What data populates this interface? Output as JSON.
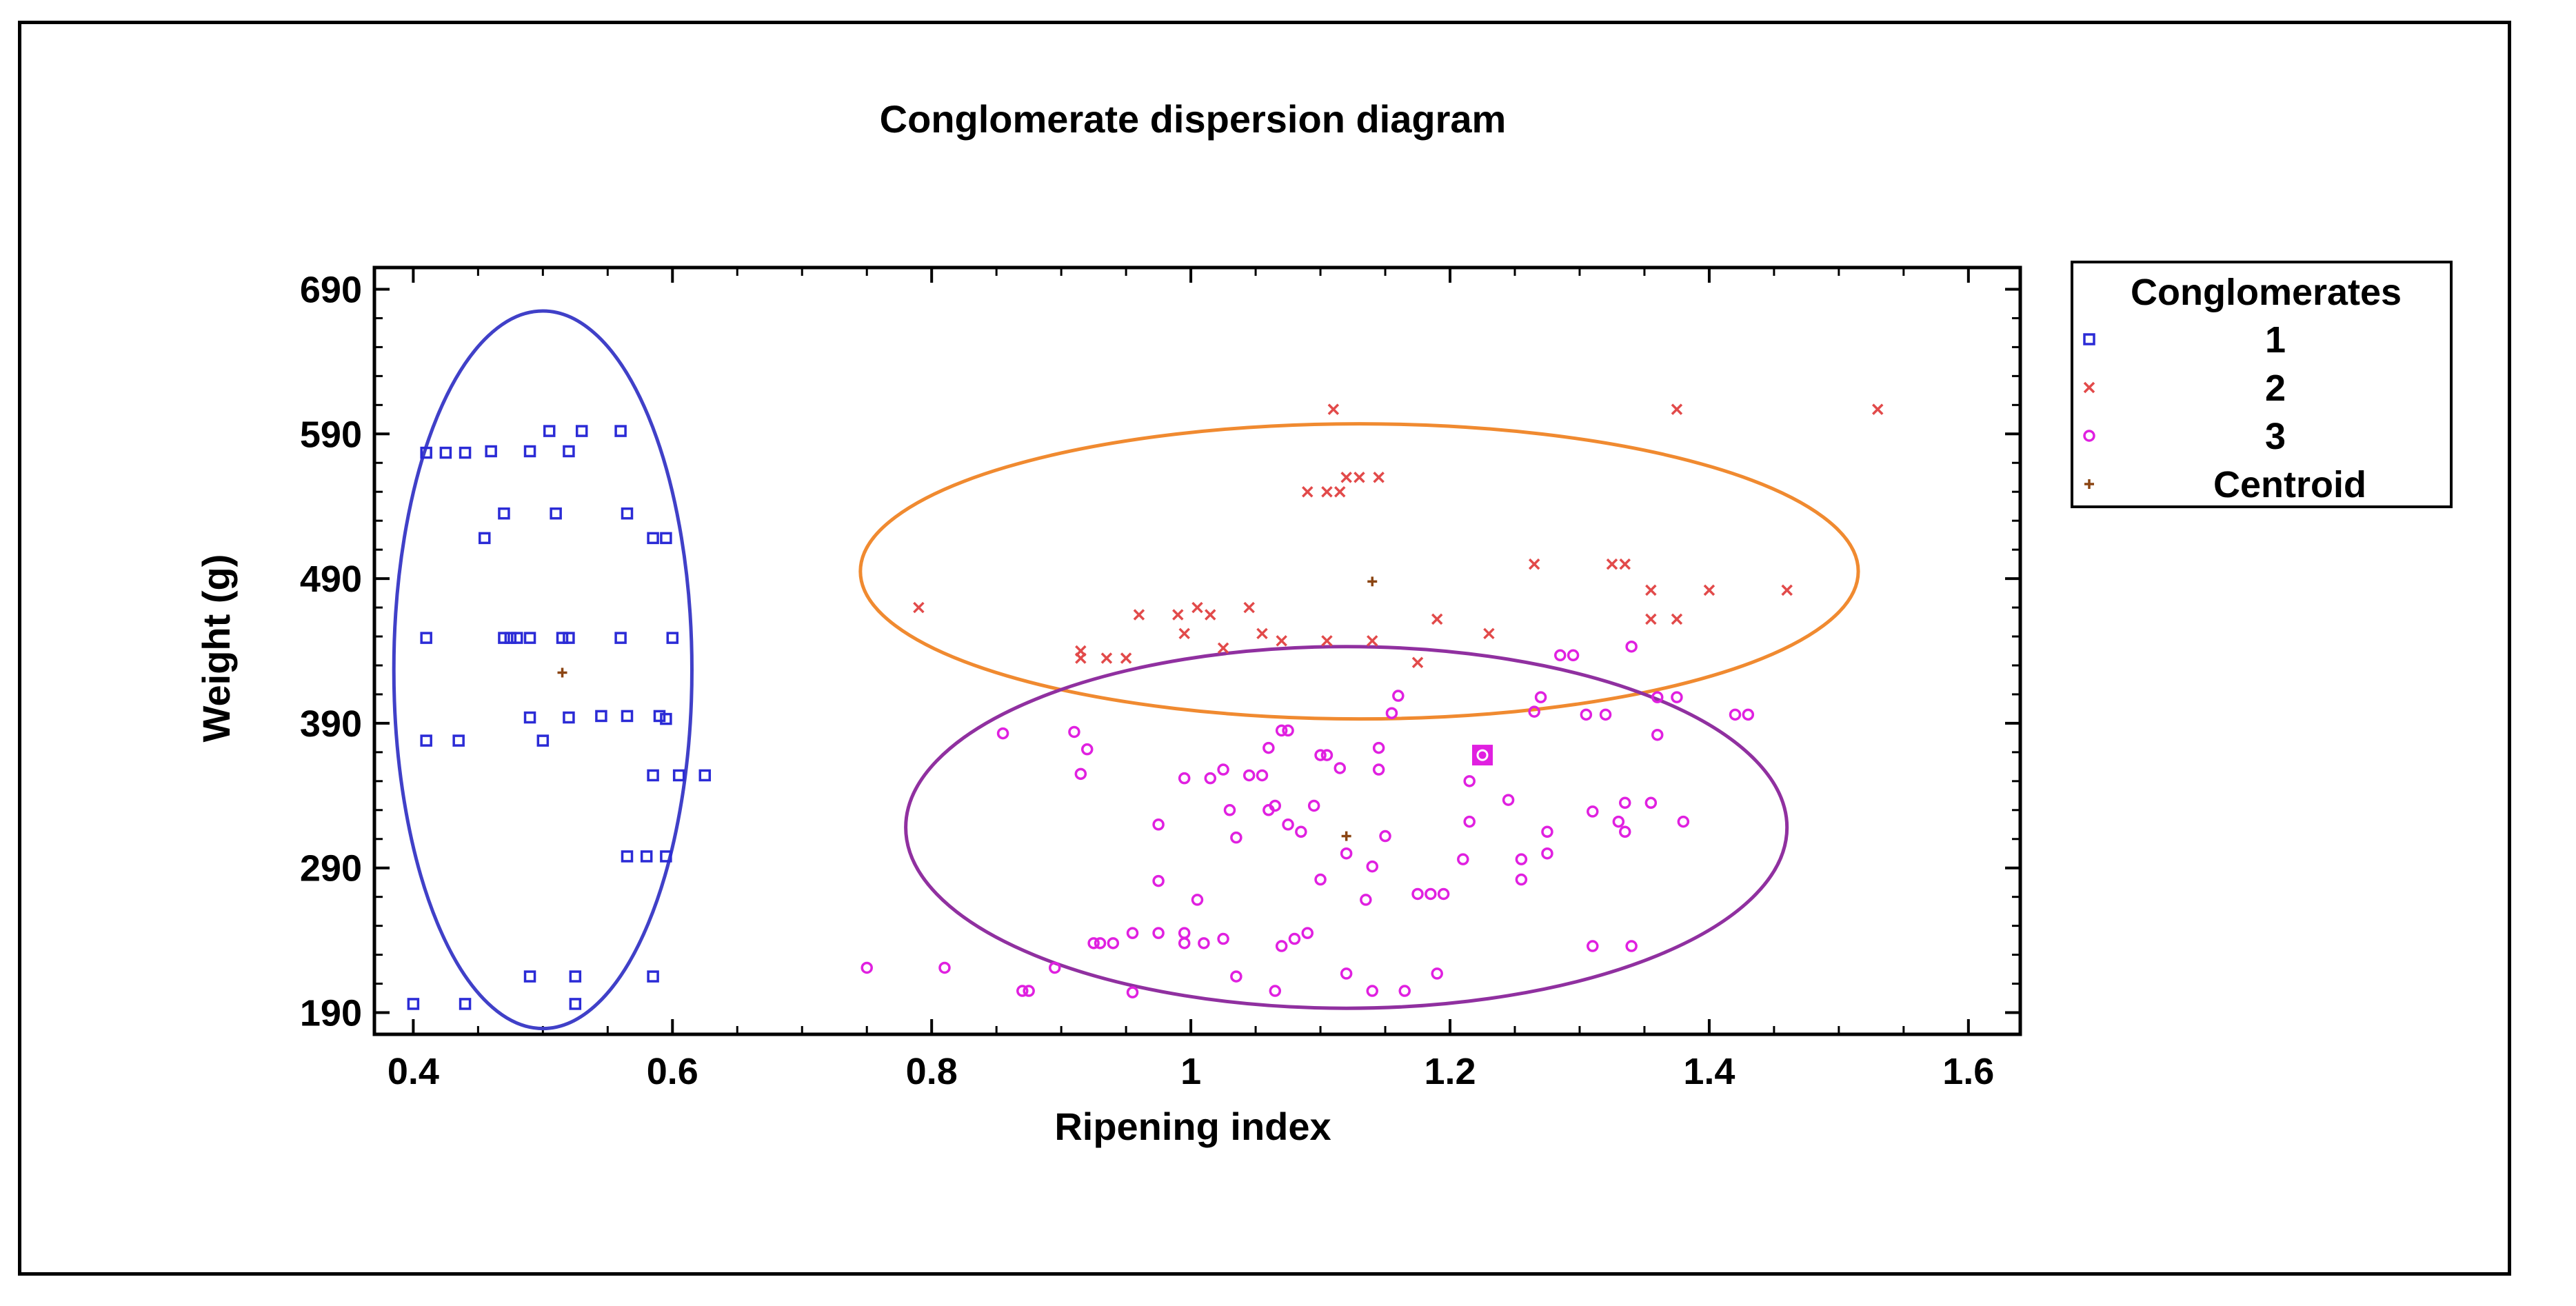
{
  "chart_data": {
    "type": "scatter",
    "title": "Conglomerate dispersion diagram",
    "xlabel": "Ripening index",
    "ylabel": "Weight (g)",
    "xlim": [
      0.37,
      1.64
    ],
    "ylim": [
      175,
      705
    ],
    "x_ticks": [
      0.4,
      0.6,
      0.8,
      1,
      1.2,
      1.4,
      1.6
    ],
    "x_tick_labels": [
      "0.4",
      "0.6",
      "0.8",
      "1",
      "1.2",
      "1.4",
      "1.6"
    ],
    "y_ticks": [
      190,
      290,
      390,
      490,
      590,
      690
    ],
    "y_tick_labels": [
      "190",
      "290",
      "390",
      "490",
      "590",
      "690"
    ],
    "grid": false,
    "legend": {
      "title": "Conglomerates",
      "placement": "right",
      "entries": [
        "1",
        "2",
        "3",
        "Centroid"
      ]
    },
    "series": [
      {
        "name": "1",
        "marker": "square",
        "color": "#2b2bd6",
        "points": [
          [
            0.41,
            577
          ],
          [
            0.425,
            577
          ],
          [
            0.44,
            577
          ],
          [
            0.46,
            578
          ],
          [
            0.49,
            578
          ],
          [
            0.52,
            578
          ],
          [
            0.505,
            592
          ],
          [
            0.53,
            592
          ],
          [
            0.56,
            592
          ],
          [
            0.455,
            518
          ],
          [
            0.47,
            535
          ],
          [
            0.51,
            535
          ],
          [
            0.565,
            535
          ],
          [
            0.585,
            518
          ],
          [
            0.595,
            518
          ],
          [
            0.41,
            449
          ],
          [
            0.47,
            449
          ],
          [
            0.475,
            449
          ],
          [
            0.48,
            449
          ],
          [
            0.49,
            449
          ],
          [
            0.515,
            449
          ],
          [
            0.52,
            449
          ],
          [
            0.56,
            449
          ],
          [
            0.6,
            449
          ],
          [
            0.49,
            394
          ],
          [
            0.52,
            394
          ],
          [
            0.545,
            395
          ],
          [
            0.565,
            395
          ],
          [
            0.59,
            395
          ],
          [
            0.595,
            393
          ],
          [
            0.41,
            378
          ],
          [
            0.435,
            378
          ],
          [
            0.5,
            378
          ],
          [
            0.585,
            354
          ],
          [
            0.605,
            354
          ],
          [
            0.625,
            354
          ],
          [
            0.565,
            298
          ],
          [
            0.58,
            298
          ],
          [
            0.595,
            298
          ],
          [
            0.49,
            215
          ],
          [
            0.525,
            215
          ],
          [
            0.585,
            215
          ],
          [
            0.4,
            196
          ],
          [
            0.44,
            196
          ],
          [
            0.525,
            196
          ]
        ]
      },
      {
        "name": "2",
        "marker": "x",
        "color": "#e24a4a",
        "points": [
          [
            1.11,
            607
          ],
          [
            1.375,
            607
          ],
          [
            1.53,
            607
          ],
          [
            1.09,
            550
          ],
          [
            1.105,
            550
          ],
          [
            1.115,
            550
          ],
          [
            1.12,
            560
          ],
          [
            1.13,
            560
          ],
          [
            1.145,
            560
          ],
          [
            0.79,
            470
          ],
          [
            0.915,
            440
          ],
          [
            0.935,
            435
          ],
          [
            0.95,
            435
          ],
          [
            0.915,
            435
          ],
          [
            0.96,
            465
          ],
          [
            0.99,
            465
          ],
          [
            1.005,
            470
          ],
          [
            1.015,
            465
          ],
          [
            1.045,
            470
          ],
          [
            0.995,
            452
          ],
          [
            1.025,
            442
          ],
          [
            1.055,
            452
          ],
          [
            1.07,
            447
          ],
          [
            1.105,
            447
          ],
          [
            1.14,
            447
          ],
          [
            1.19,
            462
          ],
          [
            1.23,
            452
          ],
          [
            1.175,
            432
          ],
          [
            1.265,
            500
          ],
          [
            1.325,
            500
          ],
          [
            1.335,
            500
          ],
          [
            1.355,
            482
          ],
          [
            1.4,
            482
          ],
          [
            1.46,
            482
          ],
          [
            1.355,
            462
          ],
          [
            1.375,
            462
          ]
        ]
      },
      {
        "name": "3",
        "marker": "circle",
        "color": "#e020e0",
        "points": [
          [
            0.75,
            221
          ],
          [
            0.81,
            221
          ],
          [
            0.87,
            205
          ],
          [
            0.875,
            205
          ],
          [
            0.895,
            221
          ],
          [
            0.925,
            238
          ],
          [
            0.93,
            238
          ],
          [
            0.94,
            238
          ],
          [
            0.955,
            245
          ],
          [
            0.975,
            245
          ],
          [
            0.995,
            245
          ],
          [
            0.995,
            238
          ],
          [
            1.01,
            238
          ],
          [
            1.025,
            241
          ],
          [
            1.035,
            215
          ],
          [
            1.065,
            205
          ],
          [
            1.07,
            236
          ],
          [
            1.08,
            241
          ],
          [
            1.09,
            245
          ],
          [
            1.12,
            217
          ],
          [
            1.14,
            205
          ],
          [
            1.165,
            205
          ],
          [
            1.19,
            217
          ],
          [
            0.955,
            204
          ],
          [
            0.855,
            383
          ],
          [
            0.91,
            384
          ],
          [
            0.92,
            372
          ],
          [
            0.915,
            355
          ],
          [
            0.975,
            320
          ],
          [
            0.975,
            281
          ],
          [
            0.995,
            352
          ],
          [
            1.005,
            268
          ],
          [
            1.015,
            352
          ],
          [
            1.025,
            358
          ],
          [
            1.03,
            330
          ],
          [
            1.035,
            311
          ],
          [
            1.045,
            354
          ],
          [
            1.055,
            354
          ],
          [
            1.06,
            330
          ],
          [
            1.065,
            333
          ],
          [
            1.075,
            320
          ],
          [
            1.085,
            315
          ],
          [
            1.095,
            333
          ],
          [
            1.1,
            282
          ],
          [
            1.06,
            373
          ],
          [
            1.07,
            385
          ],
          [
            1.075,
            385
          ],
          [
            1.1,
            368
          ],
          [
            1.105,
            368
          ],
          [
            1.115,
            359
          ],
          [
            1.12,
            300
          ],
          [
            1.135,
            268
          ],
          [
            1.14,
            291
          ],
          [
            1.145,
            373
          ],
          [
            1.145,
            358
          ],
          [
            1.15,
            312
          ],
          [
            1.155,
            397
          ],
          [
            1.16,
            409
          ],
          [
            1.175,
            272
          ],
          [
            1.185,
            272
          ],
          [
            1.195,
            272
          ],
          [
            1.21,
            296
          ],
          [
            1.215,
            350
          ],
          [
            1.215,
            322
          ],
          [
            1.225,
            368
          ],
          [
            1.245,
            337
          ],
          [
            1.255,
            296
          ],
          [
            1.255,
            282
          ],
          [
            1.265,
            398
          ],
          [
            1.27,
            408
          ],
          [
            1.275,
            300
          ],
          [
            1.275,
            315
          ],
          [
            1.285,
            437
          ],
          [
            1.295,
            437
          ],
          [
            1.305,
            396
          ],
          [
            1.31,
            329
          ],
          [
            1.31,
            236
          ],
          [
            1.32,
            396
          ],
          [
            1.33,
            322
          ],
          [
            1.335,
            335
          ],
          [
            1.335,
            315
          ],
          [
            1.34,
            236
          ],
          [
            1.34,
            443
          ],
          [
            1.355,
            335
          ],
          [
            1.36,
            382
          ],
          [
            1.36,
            408
          ],
          [
            1.375,
            408
          ],
          [
            1.38,
            322
          ],
          [
            1.42,
            396
          ],
          [
            1.43,
            396
          ]
        ]
      }
    ],
    "centroids": [
      {
        "cluster": "1",
        "x": 0.515,
        "y": 425
      },
      {
        "cluster": "2",
        "x": 1.14,
        "y": 488
      },
      {
        "cluster": "3",
        "x": 1.12,
        "y": 312
      }
    ],
    "centroid_color": "#8b4513",
    "highlight_point": {
      "cluster": "3",
      "x": 1.225,
      "y": 368
    },
    "ellipses": [
      {
        "cluster": "1",
        "cx": 0.5,
        "cy": 427,
        "rx": 0.115,
        "ry": 248,
        "color": "#4040c8"
      },
      {
        "cluster": "2",
        "cx": 1.13,
        "cy": 495,
        "rx": 0.385,
        "ry": 102,
        "color": "#f08a30"
      },
      {
        "cluster": "3",
        "cx": 1.12,
        "cy": 318,
        "rx": 0.34,
        "ry": 125,
        "color": "#9030a0"
      }
    ]
  }
}
